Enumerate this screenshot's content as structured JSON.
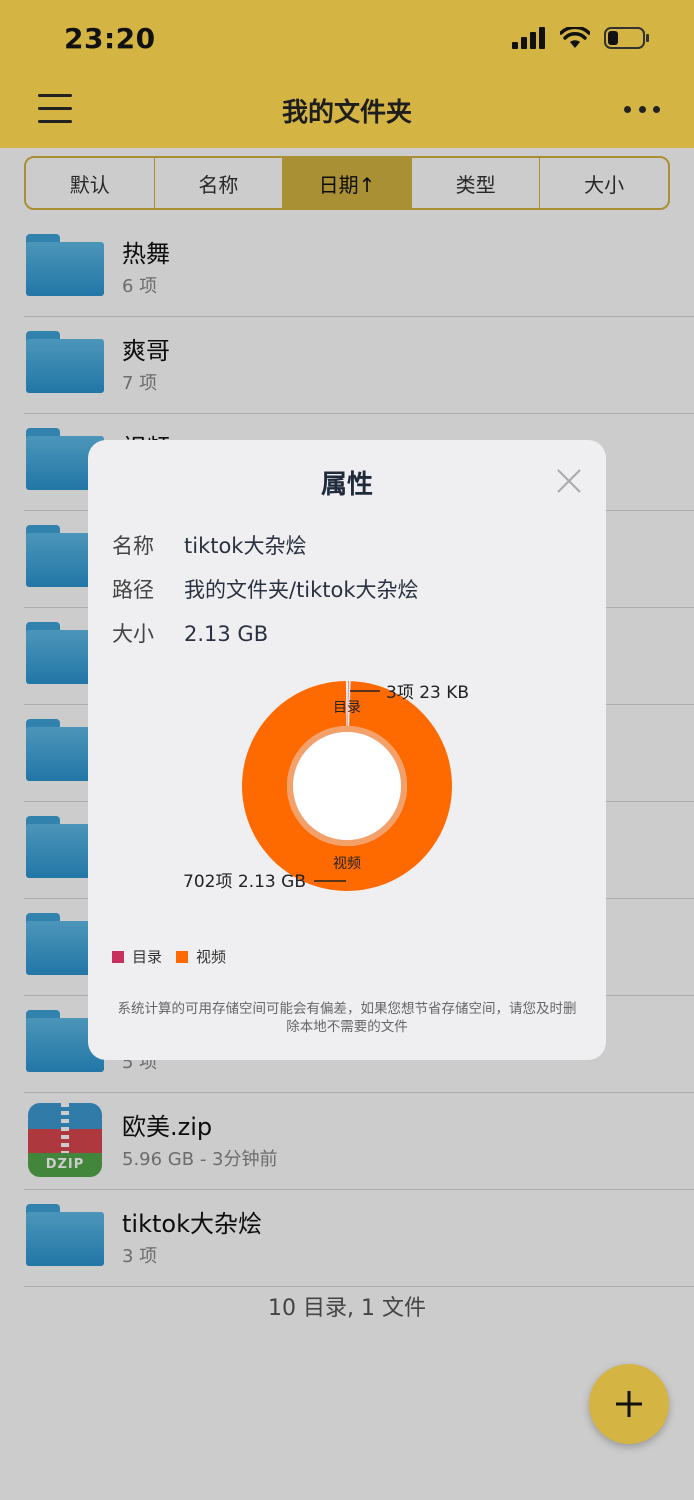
{
  "status_bar": {
    "time": "23:20"
  },
  "nav": {
    "title": "我的文件夹"
  },
  "sort_tabs": [
    "默认",
    "名称",
    "日期↑",
    "类型",
    "大小"
  ],
  "files": [
    {
      "name": "热舞",
      "meta": "6 项",
      "type": "folder"
    },
    {
      "name": "爽哥",
      "meta": "7 项",
      "type": "folder"
    },
    {
      "name": "视频",
      "meta": "",
      "type": "folder"
    },
    {
      "name": "",
      "meta": "",
      "type": "folder"
    },
    {
      "name": "",
      "meta": "",
      "type": "folder"
    },
    {
      "name": "",
      "meta": "",
      "type": "folder"
    },
    {
      "name": "",
      "meta": "",
      "type": "folder"
    },
    {
      "name": "",
      "meta": "",
      "type": "folder"
    },
    {
      "name": "",
      "meta": "5 项",
      "type": "folder"
    },
    {
      "name": "欧美.zip",
      "meta": "5.96 GB - 3分钟前",
      "type": "zip",
      "badge": "DZIP"
    },
    {
      "name": "tiktok大杂烩",
      "meta": "3 项",
      "type": "folder"
    }
  ],
  "footer": {
    "count": "10 目录, 1 文件"
  },
  "dialog": {
    "title": "属性",
    "name_label": "名称",
    "name_value": "tiktok大杂烩",
    "path_label": "路径",
    "path_value": "我的文件夹/tiktok大杂烩",
    "size_label": "大小",
    "size_value": "2.13 GB",
    "note": "系统计算的可用存储空间可能会有偏差，如果您想节省存储空间，请您及时删除本地不需要的文件"
  },
  "chart_data": {
    "type": "pie",
    "categories": [
      "目录",
      "视频"
    ],
    "values": [
      23,
      2233466880
    ],
    "data_labels": [
      "3项 23 KB",
      "702项 2.13 GB"
    ],
    "colors": [
      "#c7305c",
      "#ff6a00"
    ],
    "legend": [
      "目录",
      "视频"
    ],
    "legend_position": "bottom-left"
  },
  "colors": {
    "accent": "#d4b443",
    "folder": "#3ea3d8",
    "chart_video": "#ff6a00",
    "chart_dir": "#c7305c"
  }
}
